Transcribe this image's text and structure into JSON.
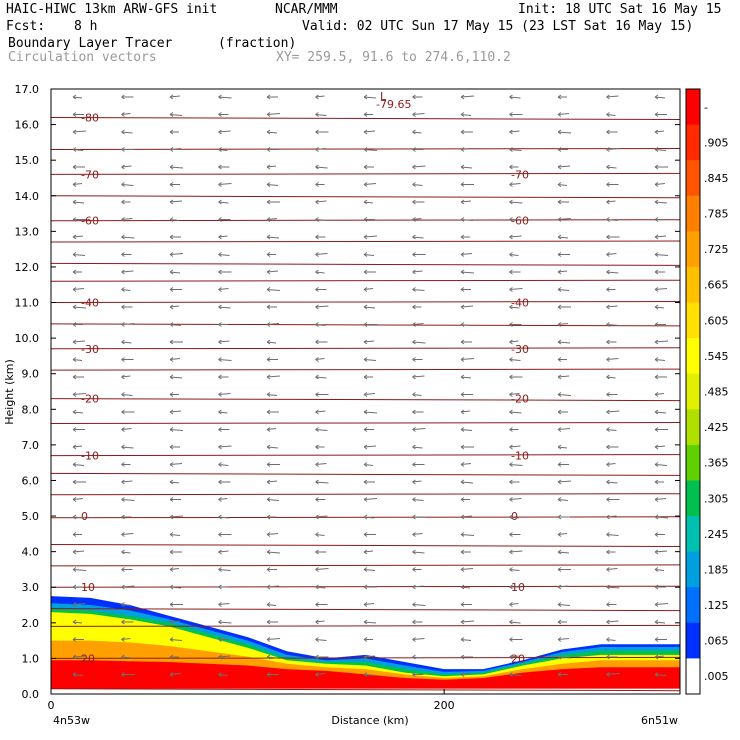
{
  "header": {
    "model": "HAIC-HIWC 13km ARW-GFS init",
    "org": "NCAR/MMM",
    "init": "Init: 18 UTC Sat 16 May 15",
    "fcst_label": "Fcst:",
    "fcst_value": "8 h",
    "valid": "Valid: 02 UTC Sun 17 May 15 (23 LST Sat 16 May 15)",
    "field": "Boundary Layer Tracer",
    "field_units": "(fraction)",
    "vectors": "Circulation vectors",
    "xy": "XY= 259.5, 91.6 to 274.6,110.2"
  },
  "chart_data": {
    "type": "heatmap",
    "ylabel": "Height (km)",
    "xlabel": "Distance (km)",
    "ylim": [
      0,
      17
    ],
    "xlim": [
      0,
      320
    ],
    "yticks": [
      "0.0",
      "1.0",
      "2.0",
      "3.0",
      "4.0",
      "5.0",
      "6.0",
      "7.0",
      "8.0",
      "9.0",
      "10.0",
      "11.0",
      "12.0",
      "13.0",
      "14.0",
      "15.0",
      "16.0",
      "17.0"
    ],
    "xticks": [
      {
        "x": 0,
        "label": "0"
      },
      {
        "x": 200,
        "label": "200"
      }
    ],
    "x_left_label": "4n53w",
    "x_right_label": "6n51w",
    "colorbar_labels": [
      "-",
      ".905",
      ".845",
      ".785",
      ".725",
      ".665",
      ".605",
      ".545",
      ".485",
      ".425",
      ".365",
      ".305",
      ".245",
      ".185",
      ".125",
      ".065",
      ".005"
    ],
    "colorbar_colors": [
      "#ff0000",
      "#ff2a00",
      "#ff5500",
      "#ff7f00",
      "#ffa000",
      "#ffc000",
      "#ffe000",
      "#ffff00",
      "#e0f000",
      "#b0e000",
      "#60d000",
      "#00c050",
      "#00c0b0",
      "#00a0e0",
      "#0070ff",
      "#0030ff",
      "#ffffff"
    ],
    "temperature_contours": [
      {
        "value": -80,
        "height": 16.2
      },
      {
        "value": -70,
        "height": 14.6
      },
      {
        "value": -60,
        "height": 13.3
      },
      {
        "value": -40,
        "height": 11.0
      },
      {
        "value": -30,
        "height": 9.7
      },
      {
        "value": -20,
        "height": 8.3
      },
      {
        "value": -10,
        "height": 6.7
      },
      {
        "value": 0,
        "height": 5.0
      },
      {
        "value": 10,
        "height": 3.0
      },
      {
        "value": 20,
        "height": 1.0
      }
    ],
    "min_label": "L",
    "min_value": "-79.65"
  }
}
